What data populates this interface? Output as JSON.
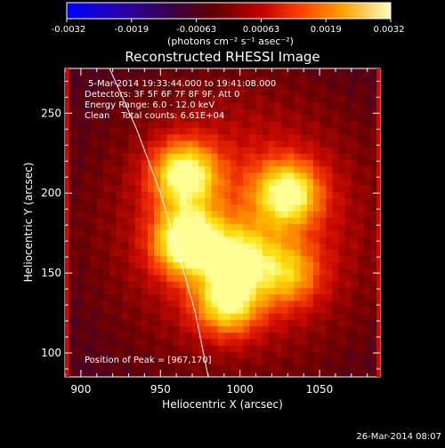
{
  "colorbar": {
    "ticks": [
      "-0.0032",
      "-0.0019",
      "-0.00063",
      "0.00063",
      "0.0019",
      "0.0032"
    ],
    "unit_label": "(photons cm⁻² s⁻¹ asec⁻²)",
    "range": [
      -0.0032,
      0.0032
    ]
  },
  "chart_data": {
    "type": "heatmap",
    "title": "Reconstructed RHESSI Image",
    "xlabel": "Heliocentric X (arcsec)",
    "ylabel": "Heliocentric Y (arcsec)",
    "xlim": [
      890,
      1088
    ],
    "ylim": [
      85,
      278
    ],
    "xticks": [
      900,
      950,
      1000,
      1050
    ],
    "yticks": [
      100,
      150,
      200,
      250
    ],
    "annotations": [
      "5-Mar-2014 19:33:44.000 to 19:41:08.000",
      "Detectors: 3F 5F 6F 7F 8F 9F, Att 0",
      "Energy Range: 6.0 - 12.0 keV",
      "Clean    Total counts: 6.61E+04"
    ],
    "peak_label": "Position of Peak = [967,170]",
    "peak": [
      967,
      170
    ],
    "sources": [
      {
        "x": 967,
        "y": 170,
        "peak": 1.0
      },
      {
        "x": 965,
        "y": 212,
        "peak": 0.85
      },
      {
        "x": 1030,
        "y": 200,
        "peak": 0.8
      },
      {
        "x": 1000,
        "y": 160,
        "peak": 0.6
      },
      {
        "x": 992,
        "y": 132,
        "peak": 0.75
      },
      {
        "x": 1030,
        "y": 150,
        "peak": 0.5
      }
    ],
    "limb_curve": [
      [
        918,
        278
      ],
      [
        935,
        240
      ],
      [
        950,
        200
      ],
      [
        962,
        160
      ],
      [
        972,
        125
      ],
      [
        980,
        85
      ]
    ]
  },
  "footer": {
    "date": "26-Mar-2014 08:07"
  }
}
